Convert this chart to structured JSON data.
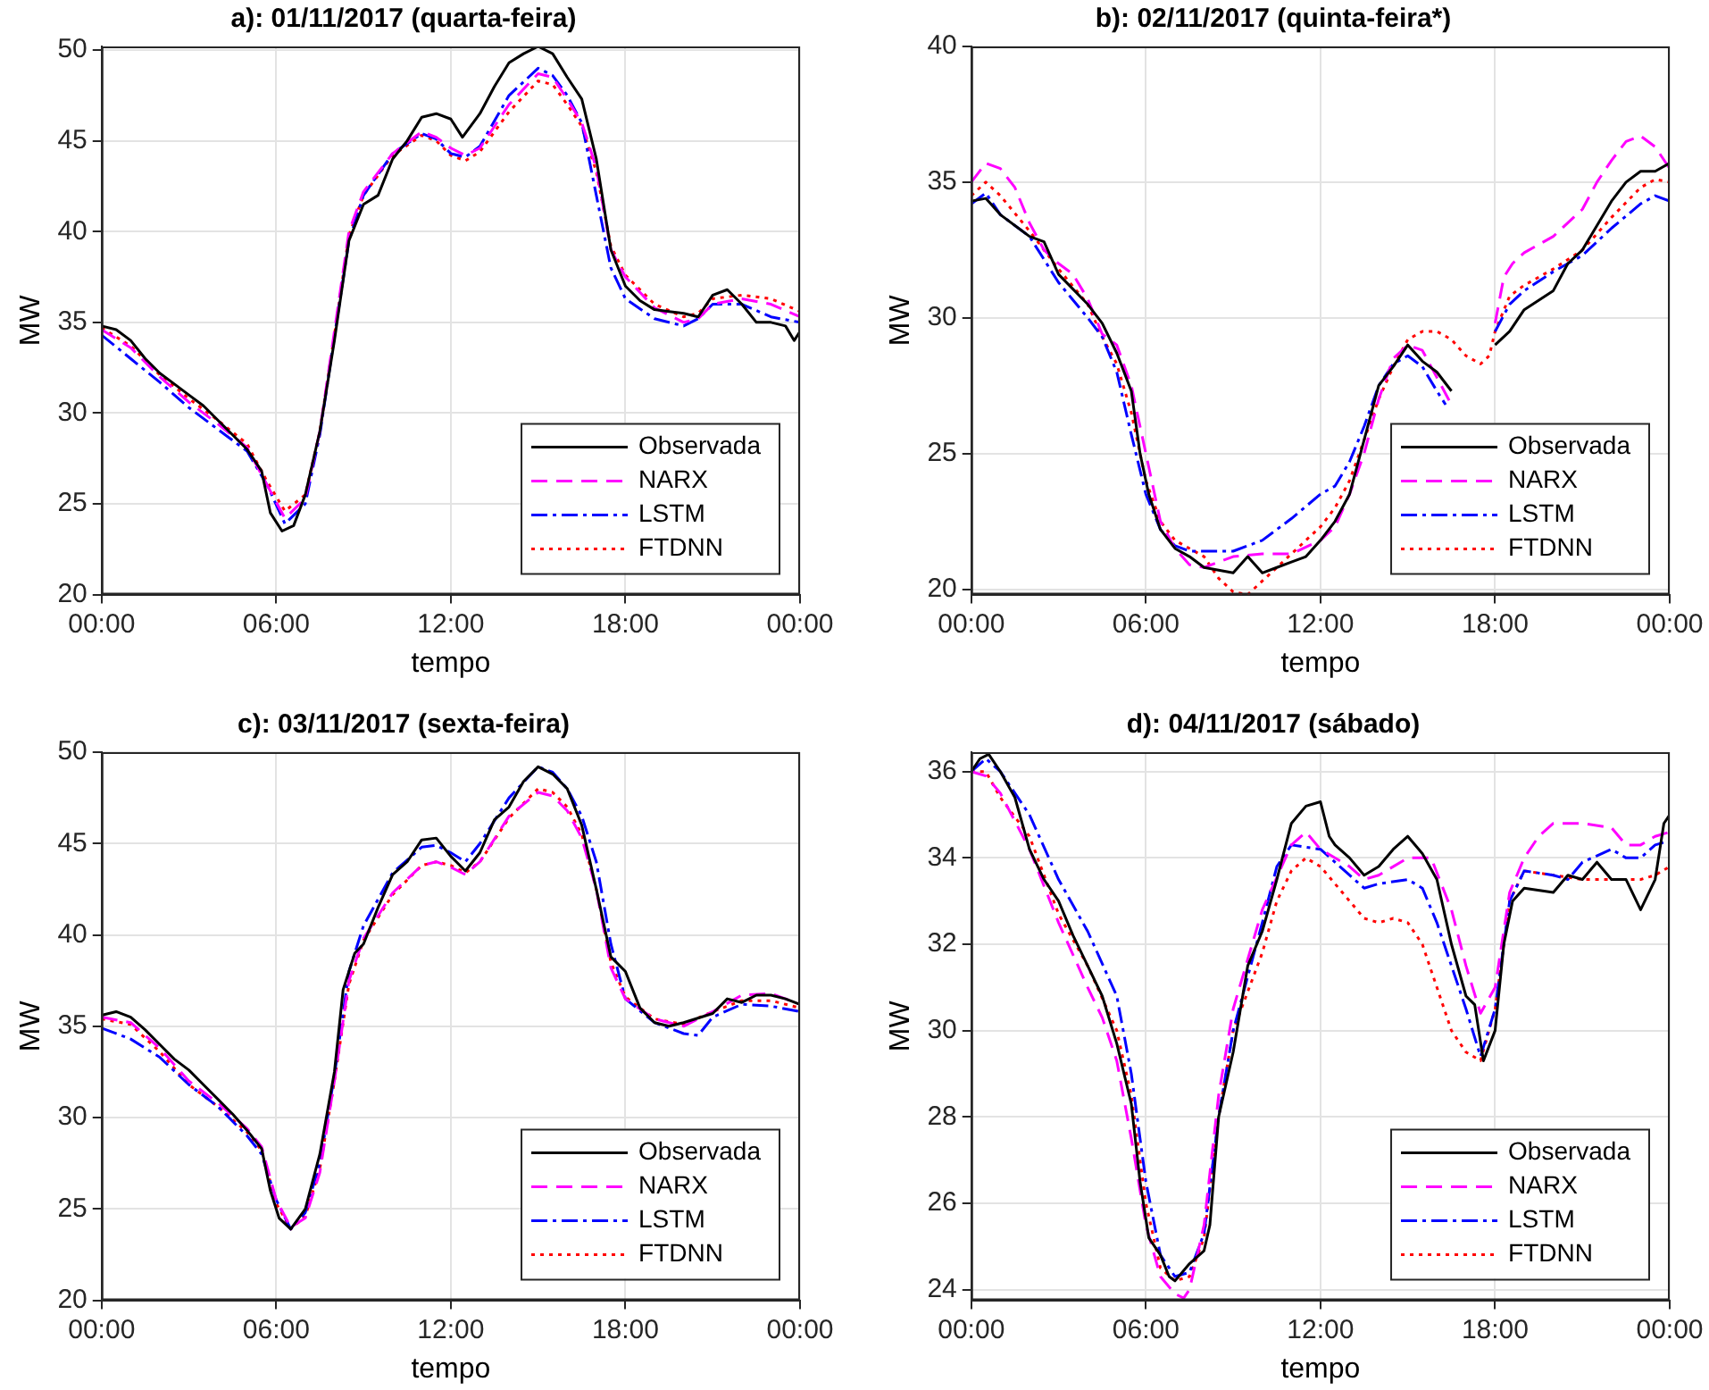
{
  "chart_data": [
    {
      "type": "line",
      "title": "a): 01/11/2017 (quarta-feira)",
      "xlabel": "tempo",
      "ylabel": "MW",
      "xlim": [
        0,
        24
      ],
      "xticks": [
        {
          "value": 0,
          "label": "00:00"
        },
        {
          "value": 6,
          "label": "06:00"
        },
        {
          "value": 12,
          "label": "12:00"
        },
        {
          "value": 18,
          "label": "18:00"
        },
        {
          "value": 24,
          "label": "00:00"
        }
      ],
      "ylim": [
        20,
        50.2
      ],
      "yticks": [
        20,
        25,
        30,
        35,
        40,
        45,
        50
      ],
      "grid": true,
      "legend": "bottom right",
      "marker": "none",
      "series": [
        {
          "name": "Observada",
          "color": "#000000",
          "line_style": "solid",
          "x": [
            0,
            0.5,
            1,
            1.5,
            2,
            2.5,
            3,
            3.5,
            4,
            4.5,
            5,
            5.5,
            5.8,
            6.2,
            6.6,
            7,
            7.5,
            8,
            8.5,
            9,
            9.5,
            10,
            10.5,
            11,
            11.5,
            12,
            12.4,
            13,
            13.5,
            14,
            14.5,
            15,
            15.5,
            16,
            16.5,
            17,
            17.5,
            18,
            18.5,
            19,
            19.5,
            20,
            20.5,
            21,
            21.5,
            22,
            22.5,
            23,
            23.5,
            23.8,
            24
          ],
          "values": [
            34.8,
            34.6,
            34,
            33,
            32.2,
            31.6,
            31,
            30.4,
            29.6,
            28.8,
            28,
            26.8,
            24.5,
            23.5,
            23.8,
            25.5,
            29,
            34,
            39.5,
            41.5,
            42,
            44,
            45,
            46.3,
            46.5,
            46.2,
            45.2,
            46.5,
            48,
            49.3,
            49.8,
            50.2,
            49.8,
            48.5,
            47.3,
            44,
            39,
            37,
            36.2,
            35.7,
            35.6,
            35.5,
            35.3,
            36.5,
            36.8,
            36,
            35,
            35,
            34.8,
            34,
            34.5
          ]
        },
        {
          "name": "NARX",
          "color": "#ff00ff",
          "line_style": "dashed",
          "x": [
            0,
            1,
            2,
            3,
            4,
            5,
            5.7,
            6.3,
            7,
            7.5,
            8,
            8.5,
            9,
            10,
            11,
            11.5,
            12,
            12.5,
            13,
            14,
            15,
            15.5,
            16,
            16.5,
            17,
            17.5,
            18,
            19,
            20,
            20.5,
            21,
            22,
            23,
            24
          ],
          "values": [
            34.6,
            33.6,
            32,
            30.6,
            29.4,
            28.1,
            26,
            24.2,
            25.3,
            29,
            34.5,
            40,
            42.2,
            44.3,
            45.5,
            45.2,
            44.6,
            44.2,
            44.6,
            47,
            48.7,
            48.5,
            47.3,
            46,
            43.5,
            39,
            37.5,
            35.8,
            35,
            35.2,
            36,
            36.3,
            36,
            35.3
          ]
        },
        {
          "name": "LSTM",
          "color": "#0000ff",
          "line_style": "dashdot",
          "x": [
            0,
            1,
            2,
            3,
            4,
            5,
            5.7,
            6.3,
            7,
            7.5,
            8,
            8.5,
            9,
            10,
            11,
            11.5,
            12,
            12.5,
            13,
            14,
            15,
            15.5,
            16,
            16.5,
            17,
            17.5,
            18,
            19,
            20,
            20.5,
            21,
            22,
            23,
            24
          ],
          "values": [
            34.3,
            33,
            31.7,
            30.3,
            29.1,
            27.9,
            26,
            23.9,
            25,
            28.8,
            34.2,
            39.5,
            42,
            44.3,
            45.4,
            45.1,
            44.3,
            44.1,
            44.7,
            47.5,
            49,
            48.6,
            47.5,
            46,
            42,
            38,
            36.3,
            35.2,
            34.8,
            35.2,
            36,
            36,
            35.3,
            35
          ]
        },
        {
          "name": "FTDNN",
          "color": "#ff0000",
          "line_style": "dotted",
          "x": [
            0,
            1,
            2,
            3,
            4,
            5,
            5.7,
            6.3,
            7,
            7.5,
            8,
            8.5,
            9,
            10,
            11,
            11.5,
            12,
            12.5,
            13,
            14,
            15,
            15.5,
            16,
            16.5,
            17,
            17.5,
            18,
            19,
            20,
            20.5,
            21,
            22,
            23,
            24
          ],
          "values": [
            34.7,
            33.7,
            32.1,
            30.8,
            29.6,
            28.3,
            26.2,
            24.6,
            25.5,
            29,
            34.3,
            39.8,
            42,
            44.2,
            45.3,
            45,
            44.2,
            43.9,
            44.4,
            46.6,
            48.3,
            48.1,
            47,
            45.8,
            43.3,
            39.2,
            37.6,
            36,
            35.3,
            35.5,
            36.3,
            36.5,
            36.3,
            35.6
          ]
        }
      ]
    },
    {
      "type": "line",
      "title": "b): 02/11/2017 (quinta-feira*)",
      "xlabel": "tempo",
      "ylabel": "MW",
      "xlim": [
        0,
        24
      ],
      "xticks": [
        {
          "value": 0,
          "label": "00:00"
        },
        {
          "value": 6,
          "label": "06:00"
        },
        {
          "value": 12,
          "label": "12:00"
        },
        {
          "value": 18,
          "label": "18:00"
        },
        {
          "value": 24,
          "label": "00:00"
        }
      ],
      "ylim": [
        19.8,
        40
      ],
      "yticks": [
        20,
        25,
        30,
        35,
        40
      ],
      "grid": true,
      "legend": "bottom right",
      "marker": "none",
      "series": [
        {
          "name": "Observada",
          "color": "#000000",
          "line_style": "solid",
          "x": [
            0,
            0.5,
            1,
            2,
            2.5,
            3,
            4,
            4.5,
            5,
            5.5,
            5.8,
            6.1,
            6.5,
            7,
            7.5,
            8,
            8.5,
            9,
            9.5,
            10,
            10.5,
            11,
            11.5,
            12,
            12.5,
            13,
            13.5,
            14,
            14.5,
            15,
            15.5,
            16,
            16.5,
            17,
            17.5,
            17.8,
            18,
            18.5,
            19,
            20,
            20.5,
            21,
            22,
            22.5,
            23,
            23.5,
            24
          ],
          "values": [
            34.3,
            34.4,
            33.8,
            33,
            32.8,
            31.6,
            30.5,
            29.8,
            28.7,
            27.3,
            25,
            23.5,
            22.2,
            21.5,
            21.2,
            20.8,
            20.7,
            20.6,
            21.2,
            20.6,
            20.8,
            21,
            21.2,
            21.8,
            22.5,
            23.5,
            25.5,
            27.5,
            28.2,
            29,
            28.4,
            28,
            27.3,
            null,
            null,
            null,
            29,
            29.5,
            30.3,
            31,
            32,
            32.5,
            34.3,
            35,
            35.4,
            35.4,
            35.7
          ]
        },
        {
          "name": "NARX",
          "color": "#ff00ff",
          "line_style": "dashed",
          "x": [
            0,
            0.5,
            1,
            1.5,
            2,
            2.5,
            3,
            3.5,
            4,
            4.5,
            5,
            5.5,
            6,
            6.5,
            7,
            7.5,
            8,
            8.5,
            9,
            10,
            11,
            12,
            12.5,
            13,
            13.5,
            14,
            14.5,
            15,
            15.5,
            16,
            16.5,
            17,
            18,
            18.3,
            18.6,
            19,
            20,
            21,
            21.5,
            22,
            22.5,
            23,
            23.5,
            24
          ],
          "values": [
            35,
            35.7,
            35.5,
            34.8,
            33.5,
            32.5,
            32,
            31.6,
            30.7,
            29.4,
            29,
            27.5,
            25,
            22.5,
            21.5,
            20.9,
            20.8,
            21,
            21.2,
            21.3,
            21.3,
            21.8,
            22.3,
            23.5,
            25,
            27,
            28.5,
            29,
            28.8,
            27.8,
            26.8,
            null,
            29.8,
            31.5,
            32,
            32.4,
            33,
            34,
            35,
            35.8,
            36.5,
            36.7,
            36.3,
            35.5
          ]
        },
        {
          "name": "LSTM",
          "color": "#0000ff",
          "line_style": "dashdot",
          "x": [
            0,
            0.5,
            1,
            2,
            3,
            4,
            4.5,
            5,
            5.5,
            6,
            6.5,
            7,
            7.5,
            8,
            9,
            10,
            11,
            12,
            12.5,
            13,
            13.5,
            14,
            14.5,
            15,
            15.5,
            16,
            16.3,
            17,
            18,
            18.5,
            19,
            20,
            21,
            22,
            23,
            23.5,
            24
          ],
          "values": [
            34.2,
            34.6,
            33.8,
            33,
            31.3,
            30,
            29.3,
            28,
            25.7,
            23.5,
            22.2,
            21.6,
            21.4,
            21.4,
            21.4,
            21.8,
            22.6,
            23.5,
            23.8,
            24.7,
            26,
            27.5,
            28.3,
            28.6,
            28.2,
            27.3,
            26.8,
            null,
            29.5,
            30.5,
            31,
            31.7,
            32.3,
            33.3,
            34.2,
            34.5,
            34.3
          ]
        },
        {
          "name": "FTDNN",
          "color": "#ff0000",
          "line_style": "dotted",
          "x": [
            0,
            0.5,
            1,
            2,
            3,
            4,
            4.5,
            5,
            5.5,
            6,
            6.5,
            7,
            7.5,
            8,
            8.5,
            9,
            9.5,
            10,
            10.5,
            11,
            12,
            12.5,
            13,
            13.5,
            14,
            14.5,
            15,
            15.5,
            16,
            16.5,
            17,
            17.5,
            17.8,
            18,
            18.5,
            19,
            20,
            21,
            22,
            23,
            23.5,
            24
          ],
          "values": [
            34.5,
            35,
            34.5,
            33.2,
            31.8,
            30.5,
            29.3,
            28.3,
            26.5,
            24,
            22.5,
            21.8,
            21.5,
            21.2,
            20.4,
            19.9,
            19.8,
            20.3,
            20.8,
            21.3,
            22.3,
            23,
            24,
            25.5,
            27,
            28.2,
            29.2,
            29.5,
            29.5,
            29.2,
            28.6,
            28.3,
            28.6,
            29.5,
            30.8,
            31.2,
            31.8,
            32.5,
            33.7,
            34.8,
            35.1,
            35
          ]
        }
      ]
    },
    {
      "type": "line",
      "title": "c): 03/11/2017 (sexta-feira)",
      "xlabel": "tempo",
      "ylabel": "MW",
      "xlim": [
        0,
        24
      ],
      "xticks": [
        {
          "value": 0,
          "label": "00:00"
        },
        {
          "value": 6,
          "label": "06:00"
        },
        {
          "value": 12,
          "label": "12:00"
        },
        {
          "value": 18,
          "label": "18:00"
        },
        {
          "value": 24,
          "label": "00:00"
        }
      ],
      "ylim": [
        20,
        50
      ],
      "yticks": [
        20,
        25,
        30,
        35,
        40,
        45,
        50
      ],
      "grid": true,
      "legend": "bottom right",
      "marker": "none",
      "series": [
        {
          "name": "Observada",
          "color": "#000000",
          "line_style": "solid",
          "x": [
            0,
            0.5,
            1,
            1.5,
            2,
            2.5,
            3,
            3.5,
            4,
            4.5,
            5,
            5.5,
            5.8,
            6.1,
            6.5,
            7,
            7.5,
            8,
            8.3,
            8.7,
            9,
            9.5,
            10,
            10.5,
            11,
            11.5,
            12,
            12.5,
            13,
            13.5,
            14,
            14.5,
            15,
            15.5,
            16,
            16.5,
            17,
            17.5,
            18,
            18.5,
            19,
            19.5,
            20,
            21,
            21.5,
            22,
            22.5,
            23,
            23.5,
            24
          ],
          "values": [
            35.6,
            35.8,
            35.5,
            34.8,
            34,
            33.2,
            32.6,
            31.8,
            31,
            30.2,
            29.3,
            28.3,
            26,
            24.5,
            23.9,
            25,
            28,
            32.5,
            37,
            39,
            39.5,
            41.5,
            43.3,
            44,
            45.2,
            45.3,
            44.3,
            43.5,
            44.5,
            46.3,
            47,
            48.4,
            49.2,
            48.8,
            48,
            46,
            42.5,
            38.8,
            38,
            36,
            35.2,
            35,
            35.2,
            35.7,
            36.5,
            36.3,
            36.7,
            36.7,
            36.5,
            36.2
          ]
        },
        {
          "name": "NARX",
          "color": "#ff00ff",
          "line_style": "dashed",
          "x": [
            0,
            1,
            2,
            3,
            4,
            5,
            5.5,
            6,
            6.5,
            7,
            7.5,
            8,
            8.5,
            9,
            10,
            11,
            11.5,
            12,
            12.5,
            13,
            14,
            15,
            15.5,
            16,
            16.5,
            17,
            17.5,
            18,
            19,
            20,
            21,
            22,
            23,
            24
          ],
          "values": [
            35.5,
            35.2,
            33.8,
            32,
            30.8,
            29.4,
            28.4,
            25.5,
            24,
            24.5,
            27,
            32,
            37.5,
            39.8,
            42.3,
            43.8,
            44,
            43.7,
            43.3,
            44,
            46.5,
            47.8,
            47.6,
            46.8,
            45.3,
            42.5,
            38.2,
            36.5,
            35.4,
            35,
            35.8,
            36.7,
            36.8,
            36.2
          ]
        },
        {
          "name": "LSTM",
          "color": "#0000ff",
          "line_style": "dashdot",
          "x": [
            0,
            1,
            2,
            3,
            4,
            5,
            5.5,
            6,
            6.5,
            7,
            7.5,
            8,
            8.5,
            9,
            10,
            11,
            11.5,
            12,
            12.5,
            13,
            14,
            15,
            15.5,
            16,
            16.5,
            17,
            17.5,
            18,
            19,
            20,
            20.5,
            21,
            22,
            23,
            24
          ],
          "values": [
            34.9,
            34.3,
            33.3,
            31.8,
            30.6,
            29,
            28,
            25.5,
            23.9,
            24.8,
            27.5,
            32.3,
            38,
            40.5,
            43.4,
            44.8,
            44.9,
            44.5,
            44,
            45,
            47.5,
            49.2,
            48.9,
            48,
            46.5,
            44,
            39.5,
            36.5,
            35.2,
            34.6,
            34.5,
            35.5,
            36.2,
            36.1,
            35.8
          ]
        },
        {
          "name": "FTDNN",
          "color": "#ff0000",
          "line_style": "dotted",
          "x": [
            0,
            1,
            2,
            3,
            4,
            5,
            5.5,
            6,
            6.5,
            7,
            7.5,
            8,
            8.5,
            9,
            10,
            11,
            11.5,
            12,
            12.5,
            13,
            14,
            15,
            15.5,
            16,
            16.5,
            17,
            17.5,
            18,
            19,
            20,
            21,
            22,
            23,
            24
          ],
          "values": [
            35.4,
            35.1,
            33.6,
            31.8,
            30.6,
            29.2,
            28.2,
            25.3,
            23.9,
            24.6,
            27.2,
            32,
            37.3,
            39.7,
            42.2,
            43.8,
            44,
            43.8,
            43.4,
            44,
            46.4,
            48,
            47.8,
            47,
            45.5,
            42.5,
            38.5,
            36.6,
            35.4,
            35.1,
            35.8,
            36.4,
            36.4,
            36
          ]
        }
      ]
    },
    {
      "type": "line",
      "title": "d): 04/11/2017 (sábado)",
      "xlabel": "tempo",
      "ylabel": "MW",
      "xlim": [
        0,
        24
      ],
      "xticks": [
        {
          "value": 0,
          "label": "00:00"
        },
        {
          "value": 6,
          "label": "06:00"
        },
        {
          "value": 12,
          "label": "12:00"
        },
        {
          "value": 18,
          "label": "18:00"
        },
        {
          "value": 24,
          "label": "00:00"
        }
      ],
      "ylim": [
        23.75,
        36.45
      ],
      "yticks": [
        24,
        26,
        28,
        30,
        32,
        34,
        36
      ],
      "grid": true,
      "legend": "bottom right",
      "marker": "none",
      "series": [
        {
          "name": "Observada",
          "color": "#000000",
          "line_style": "solid",
          "x": [
            0,
            0.3,
            0.6,
            1,
            1.5,
            2,
            2.5,
            3,
            3.5,
            4,
            4.5,
            5,
            5.5,
            5.8,
            6.1,
            6.5,
            6.8,
            7,
            7.5,
            8,
            8.2,
            8.5,
            9,
            9.5,
            10,
            10.5,
            11,
            11.5,
            12,
            12.3,
            12.5,
            13,
            13.5,
            14,
            14.5,
            15,
            15.5,
            16,
            16.5,
            17,
            17.3,
            17.6,
            18,
            18.3,
            18.6,
            19,
            20,
            20.5,
            21,
            21.5,
            22,
            22.5,
            23,
            23.5,
            23.8,
            24
          ],
          "values": [
            36,
            36.3,
            36.4,
            36,
            35.4,
            34.2,
            33.5,
            33,
            32.2,
            31.5,
            30.8,
            29.7,
            28.3,
            26.5,
            25.2,
            24.8,
            24.3,
            24.2,
            24.6,
            24.9,
            25.5,
            28,
            29.5,
            31.5,
            32.3,
            33.5,
            34.8,
            35.2,
            35.3,
            34.5,
            34.3,
            34,
            33.6,
            33.8,
            34.2,
            34.5,
            34.1,
            33.5,
            32,
            30.8,
            30.6,
            29.3,
            30,
            32,
            33,
            33.3,
            33.2,
            33.6,
            33.5,
            33.9,
            33.5,
            33.5,
            32.8,
            33.5,
            34.8,
            35
          ]
        },
        {
          "name": "NARX",
          "color": "#ff00ff",
          "line_style": "dashed",
          "x": [
            0,
            0.5,
            1,
            2,
            3,
            4,
            4.5,
            5,
            5.5,
            6,
            6.5,
            7,
            7.3,
            7.5,
            8,
            8.5,
            9,
            10,
            11,
            11.5,
            12,
            13,
            13.5,
            14,
            15,
            15.8,
            16.5,
            17,
            17.5,
            18,
            18.5,
            19,
            19.5,
            20,
            21,
            22,
            22.5,
            23,
            23.5,
            24
          ],
          "values": [
            36,
            35.9,
            35.5,
            34.2,
            32.5,
            31,
            30.3,
            29.3,
            27.5,
            25.5,
            24.3,
            23.9,
            23.8,
            24,
            25.5,
            28.5,
            30.5,
            32.8,
            34.3,
            34.6,
            34.2,
            33.8,
            33.5,
            33.6,
            34,
            34,
            32.8,
            31.5,
            30.4,
            31,
            33.2,
            34,
            34.5,
            34.8,
            34.8,
            34.7,
            34.3,
            34.3,
            34.5,
            34.6
          ]
        },
        {
          "name": "LSTM",
          "color": "#0000ff",
          "line_style": "dashdot",
          "x": [
            0,
            0.5,
            1,
            2,
            3,
            4,
            5,
            5.5,
            6,
            6.5,
            7,
            7.5,
            8,
            8.5,
            9,
            10,
            10.5,
            11,
            12,
            13,
            13.5,
            14,
            15,
            15.5,
            16,
            16.5,
            17,
            17.5,
            18,
            18.5,
            19,
            20,
            20.5,
            21,
            22,
            22.5,
            23,
            23.5,
            24
          ],
          "values": [
            36,
            36.3,
            36,
            35,
            33.5,
            32.3,
            30.8,
            29,
            26.5,
            24.8,
            24.3,
            24.4,
            25.3,
            28,
            30,
            32.5,
            33.8,
            34.3,
            34.2,
            33.6,
            33.3,
            33.4,
            33.5,
            33.3,
            32.5,
            31.5,
            30.5,
            29.4,
            30.5,
            33,
            33.7,
            33.6,
            33.5,
            33.9,
            34.2,
            34,
            34,
            34.3,
            34.4
          ]
        },
        {
          "name": "FTDNN",
          "color": "#ff0000",
          "line_style": "dotted",
          "x": [
            0,
            0.5,
            1,
            2,
            3,
            4,
            5,
            5.5,
            6,
            6.5,
            7,
            7.5,
            8,
            8.5,
            9,
            10,
            10.5,
            11,
            11.5,
            12,
            12.5,
            13,
            13.5,
            14,
            14.5,
            15,
            15.5,
            16,
            16.5,
            17,
            17.5,
            18,
            18.5,
            19,
            20,
            21,
            22,
            23,
            23.5,
            24
          ],
          "values": [
            36,
            36,
            35.4,
            34.5,
            32.7,
            31.5,
            30,
            28.5,
            26,
            24.5,
            24.2,
            24.3,
            25.2,
            28,
            30,
            31.8,
            33,
            33.7,
            34,
            33.8,
            33.4,
            33,
            32.6,
            32.5,
            32.6,
            32.5,
            32,
            31,
            30,
            29.5,
            29.3,
            30.5,
            33,
            33.7,
            33.6,
            33.5,
            33.5,
            33.5,
            33.6,
            33.8
          ]
        }
      ]
    }
  ]
}
